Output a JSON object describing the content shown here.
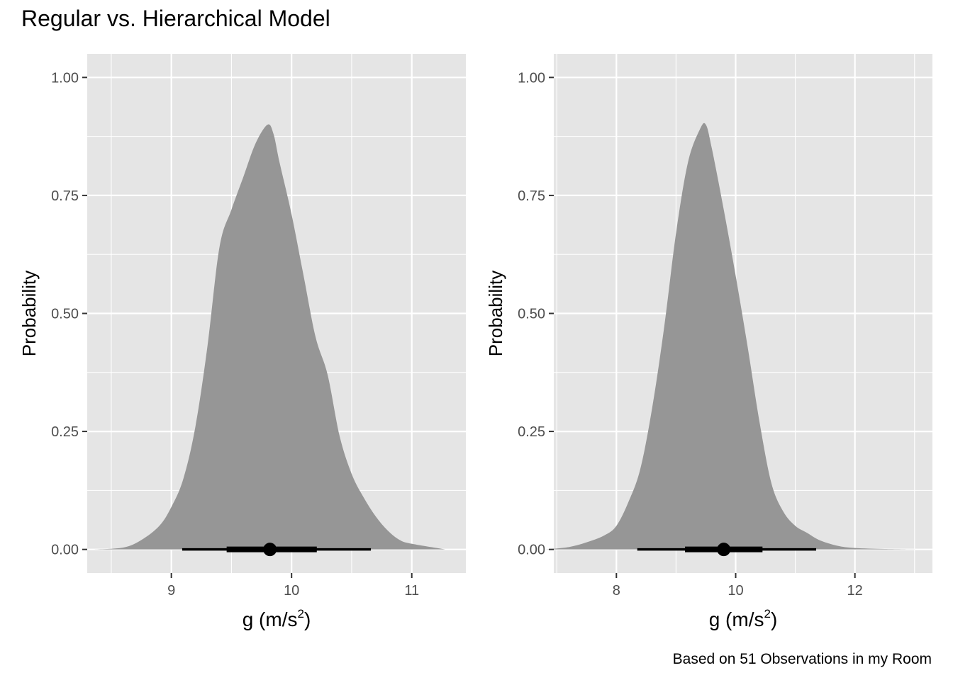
{
  "title": "Regular vs. Hierarchical Model",
  "caption": "Based on 51 Observations in my Room",
  "colors": {
    "panel_background": "#e5e5e5",
    "grid_major": "#ffffff",
    "density_fill": "#969696",
    "interval": "#000000",
    "axis_text": "#4d4d4d"
  },
  "chart_data": [
    {
      "type": "area",
      "xlabel_base": "g",
      "xlabel_units": "m/s",
      "xlabel_exp": "2",
      "ylabel": "Probability",
      "xlim": [
        8.3,
        11.45
      ],
      "ylim": [
        -0.05,
        1.05
      ],
      "x_ticks": [
        9,
        10,
        11
      ],
      "y_ticks": [
        0.0,
        0.25,
        0.5,
        0.75,
        1.0
      ],
      "y_tick_labels": [
        "0.00",
        "0.25",
        "0.50",
        "0.75",
        "1.00"
      ],
      "grid": true,
      "density": [
        [
          8.35,
          0.0
        ],
        [
          8.6,
          0.004
        ],
        [
          8.75,
          0.02
        ],
        [
          8.9,
          0.05
        ],
        [
          9.0,
          0.09
        ],
        [
          9.1,
          0.15
        ],
        [
          9.2,
          0.26
        ],
        [
          9.3,
          0.43
        ],
        [
          9.4,
          0.64
        ],
        [
          9.5,
          0.72
        ],
        [
          9.6,
          0.79
        ],
        [
          9.7,
          0.86
        ],
        [
          9.8,
          0.9
        ],
        [
          9.85,
          0.88
        ],
        [
          9.9,
          0.82
        ],
        [
          10.0,
          0.71
        ],
        [
          10.1,
          0.58
        ],
        [
          10.2,
          0.45
        ],
        [
          10.3,
          0.37
        ],
        [
          10.4,
          0.24
        ],
        [
          10.5,
          0.16
        ],
        [
          10.6,
          0.11
        ],
        [
          10.7,
          0.07
        ],
        [
          10.8,
          0.04
        ],
        [
          10.9,
          0.02
        ],
        [
          11.0,
          0.012
        ],
        [
          11.28,
          0.0
        ]
      ],
      "point": 9.82,
      "interval_inner": [
        9.46,
        10.21
      ],
      "interval_outer": [
        9.09,
        10.66
      ]
    },
    {
      "type": "area",
      "xlabel_base": "g",
      "xlabel_units": "m/s",
      "xlabel_exp": "2",
      "ylabel": "Probability",
      "xlim": [
        6.95,
        13.3
      ],
      "ylim": [
        -0.05,
        1.05
      ],
      "x_ticks": [
        8,
        10,
        12
      ],
      "y_ticks": [
        0.0,
        0.25,
        0.5,
        0.75,
        1.0
      ],
      "y_tick_labels": [
        "0.00",
        "0.25",
        "0.50",
        "0.75",
        "1.00"
      ],
      "grid": true,
      "density": [
        [
          6.8,
          0.0
        ],
        [
          7.2,
          0.005
        ],
        [
          7.5,
          0.015
        ],
        [
          7.8,
          0.03
        ],
        [
          8.0,
          0.05
        ],
        [
          8.2,
          0.1
        ],
        [
          8.4,
          0.17
        ],
        [
          8.6,
          0.3
        ],
        [
          8.8,
          0.47
        ],
        [
          9.0,
          0.67
        ],
        [
          9.2,
          0.82
        ],
        [
          9.4,
          0.89
        ],
        [
          9.5,
          0.9
        ],
        [
          9.6,
          0.85
        ],
        [
          9.8,
          0.72
        ],
        [
          10.0,
          0.58
        ],
        [
          10.2,
          0.43
        ],
        [
          10.4,
          0.27
        ],
        [
          10.6,
          0.14
        ],
        [
          10.8,
          0.08
        ],
        [
          11.0,
          0.05
        ],
        [
          11.2,
          0.035
        ],
        [
          11.4,
          0.02
        ],
        [
          11.7,
          0.008
        ],
        [
          12.0,
          0.003
        ],
        [
          12.5,
          0.001
        ],
        [
          13.2,
          0.0
        ]
      ],
      "point": 9.8,
      "interval_inner": [
        9.15,
        10.45
      ],
      "interval_outer": [
        8.35,
        11.35
      ]
    }
  ]
}
